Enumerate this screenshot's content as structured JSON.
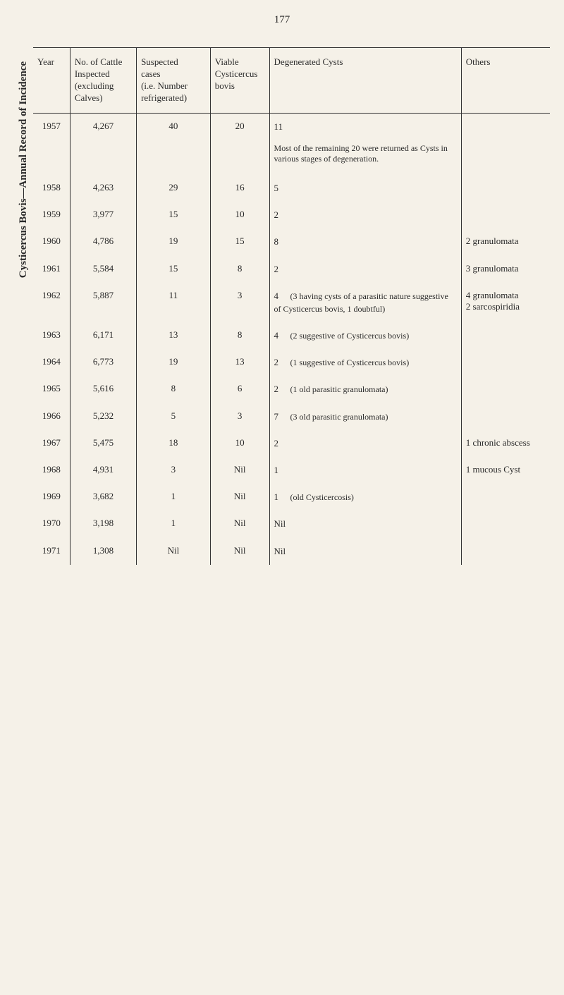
{
  "page_number": "177",
  "table_title": "Cysticercus Bovis—Annual Record of Incidence",
  "headers": {
    "year": "Year",
    "cattle": "No. of Cattle\nInspected\n(excluding\nCalves)",
    "suspected": "Suspected\ncases\n(i.e. Number\nrefrigerated)",
    "viable": "Viable\nCysticercus\nbovis",
    "degenerated": "Degenerated Cysts",
    "others": "Others"
  },
  "degen_note": "Most of the remaining 20 were returned as Cysts in various stages of degeneration.",
  "rows": [
    {
      "year": "1957",
      "cattle": "4,267",
      "suspected": "40",
      "viable": "20",
      "degen_count": "11",
      "degen_text": "",
      "others": ""
    },
    {
      "year": "1958",
      "cattle": "4,263",
      "suspected": "29",
      "viable": "16",
      "degen_count": "5",
      "degen_text": "",
      "others": ""
    },
    {
      "year": "1959",
      "cattle": "3,977",
      "suspected": "15",
      "viable": "10",
      "degen_count": "2",
      "degen_text": "",
      "others": ""
    },
    {
      "year": "1960",
      "cattle": "4,786",
      "suspected": "19",
      "viable": "15",
      "degen_count": "8",
      "degen_text": "",
      "others": "2 granulomata"
    },
    {
      "year": "1961",
      "cattle": "5,584",
      "suspected": "15",
      "viable": "8",
      "degen_count": "2",
      "degen_text": "",
      "others": "3 granulomata"
    },
    {
      "year": "1962",
      "cattle": "5,887",
      "suspected": "11",
      "viable": "3",
      "degen_count": "4",
      "degen_text": "(3 having cysts of a parasitic nature suggestive of Cysticercus bovis, 1 doubtful)",
      "others": "4 granulomata\n2 sarcospiridia"
    },
    {
      "year": "1963",
      "cattle": "6,171",
      "suspected": "13",
      "viable": "8",
      "degen_count": "4",
      "degen_text": "(2 suggestive of Cysticercus bovis)",
      "others": ""
    },
    {
      "year": "1964",
      "cattle": "6,773",
      "suspected": "19",
      "viable": "13",
      "degen_count": "2",
      "degen_text": "(1 suggestive of Cysticercus bovis)",
      "others": ""
    },
    {
      "year": "1965",
      "cattle": "5,616",
      "suspected": "8",
      "viable": "6",
      "degen_count": "2",
      "degen_text": "(1 old parasitic granulomata)",
      "others": ""
    },
    {
      "year": "1966",
      "cattle": "5,232",
      "suspected": "5",
      "viable": "3",
      "degen_count": "7",
      "degen_text": "(3 old parasitic granulomata)",
      "others": ""
    },
    {
      "year": "1967",
      "cattle": "5,475",
      "suspected": "18",
      "viable": "10",
      "degen_count": "2",
      "degen_text": "",
      "others": "1 chronic abscess"
    },
    {
      "year": "1968",
      "cattle": "4,931",
      "suspected": "3",
      "viable": "Nil",
      "degen_count": "1",
      "degen_text": "",
      "others": "1 mucous Cyst"
    },
    {
      "year": "1969",
      "cattle": "3,682",
      "suspected": "1",
      "viable": "Nil",
      "degen_count": "1",
      "degen_text": "(old Cysticercosis)",
      "others": ""
    },
    {
      "year": "1970",
      "cattle": "3,198",
      "suspected": "1",
      "viable": "Nil",
      "degen_count": "Nil",
      "degen_text": "",
      "others": ""
    },
    {
      "year": "1971",
      "cattle": "1,308",
      "suspected": "Nil",
      "viable": "Nil",
      "degen_count": "Nil",
      "degen_text": "",
      "others": ""
    }
  ],
  "colors": {
    "background": "#f5f1e8",
    "text": "#2a2a2a",
    "border": "#333333"
  }
}
